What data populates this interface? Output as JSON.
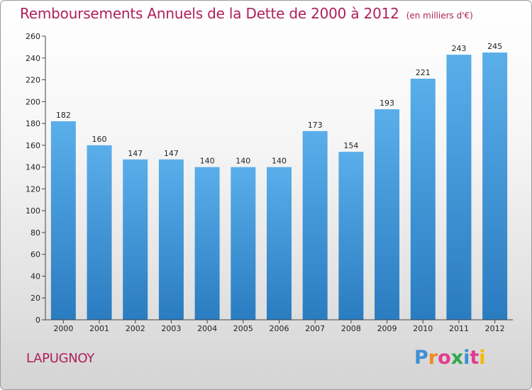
{
  "header": {
    "title": "Remboursements Annuels de la Dette de 2000 à 2012",
    "unit": "(en milliers d'€)"
  },
  "commune": "LAPUGNOY",
  "logo": {
    "letters": [
      "P",
      "r",
      "o",
      "x",
      "i",
      "t",
      "i"
    ],
    "colors": [
      "#3d8fd6",
      "#f08a1c",
      "#e33c8e",
      "#2ea84a",
      "#3d8fd6",
      "#e33c8e",
      "#f5b800"
    ]
  },
  "chart_data": {
    "type": "bar",
    "title": "Remboursements Annuels de la Dette de 2000 à 2012",
    "xlabel": "",
    "ylabel": "",
    "categories": [
      "2000",
      "2001",
      "2002",
      "2003",
      "2004",
      "2005",
      "2006",
      "2007",
      "2008",
      "2009",
      "2010",
      "2011",
      "2012"
    ],
    "values": [
      182,
      160,
      147,
      147,
      140,
      140,
      140,
      173,
      154,
      193,
      221,
      243,
      245
    ],
    "ylim": [
      0,
      260
    ],
    "yticks": [
      0,
      20,
      40,
      60,
      80,
      100,
      120,
      140,
      160,
      180,
      200,
      220,
      240,
      260
    ],
    "grid": false,
    "bar_color_top": "#5aaeea",
    "bar_color_bottom": "#2a7cc0"
  }
}
